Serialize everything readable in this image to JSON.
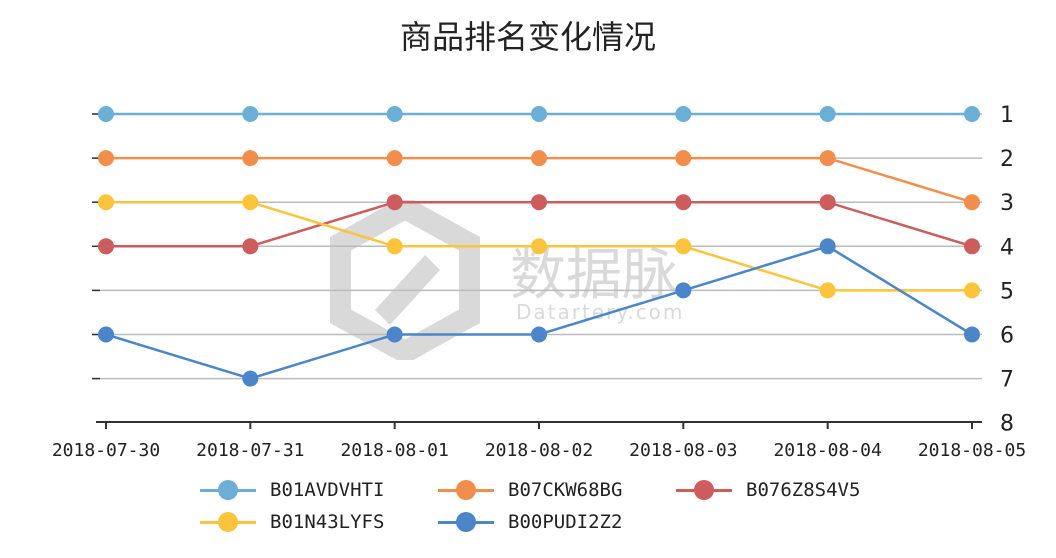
{
  "chart_data": {
    "type": "line",
    "title": "商品排名变化情况",
    "xlabel": "",
    "ylabel": "",
    "categories": [
      "2018-07-30",
      "2018-07-31",
      "2018-08-01",
      "2018-08-02",
      "2018-08-03",
      "2018-08-04",
      "2018-08-05"
    ],
    "y_ticks": [
      "1",
      "2",
      "3",
      "4",
      "5",
      "6",
      "7",
      "8"
    ],
    "ylim": [
      1,
      8
    ],
    "y_inverted": true,
    "y_axis_side": "right",
    "grid": true,
    "legend_position": "bottom",
    "series": [
      {
        "name": "B01AVDVHTI",
        "color": "#6baed6",
        "values": [
          1,
          1,
          1,
          1,
          1,
          1,
          1
        ]
      },
      {
        "name": "B07CKW68BG",
        "color": "#f28e4b",
        "values": [
          2,
          2,
          2,
          2,
          2,
          2,
          3
        ]
      },
      {
        "name": "B076Z8S4V5",
        "color": "#cd5c5c",
        "values": [
          4,
          4,
          3,
          3,
          3,
          3,
          4
        ]
      },
      {
        "name": "B01N43LYFS",
        "color": "#fcc43c",
        "values": [
          3,
          3,
          4,
          4,
          4,
          5,
          5
        ]
      },
      {
        "name": "B00PUDI2Z2",
        "color": "#4a86c8",
        "values": [
          6,
          7,
          6,
          6,
          5,
          4,
          6
        ]
      }
    ]
  },
  "watermark": {
    "text": "数据脉",
    "subtext": "Datartery.com"
  }
}
